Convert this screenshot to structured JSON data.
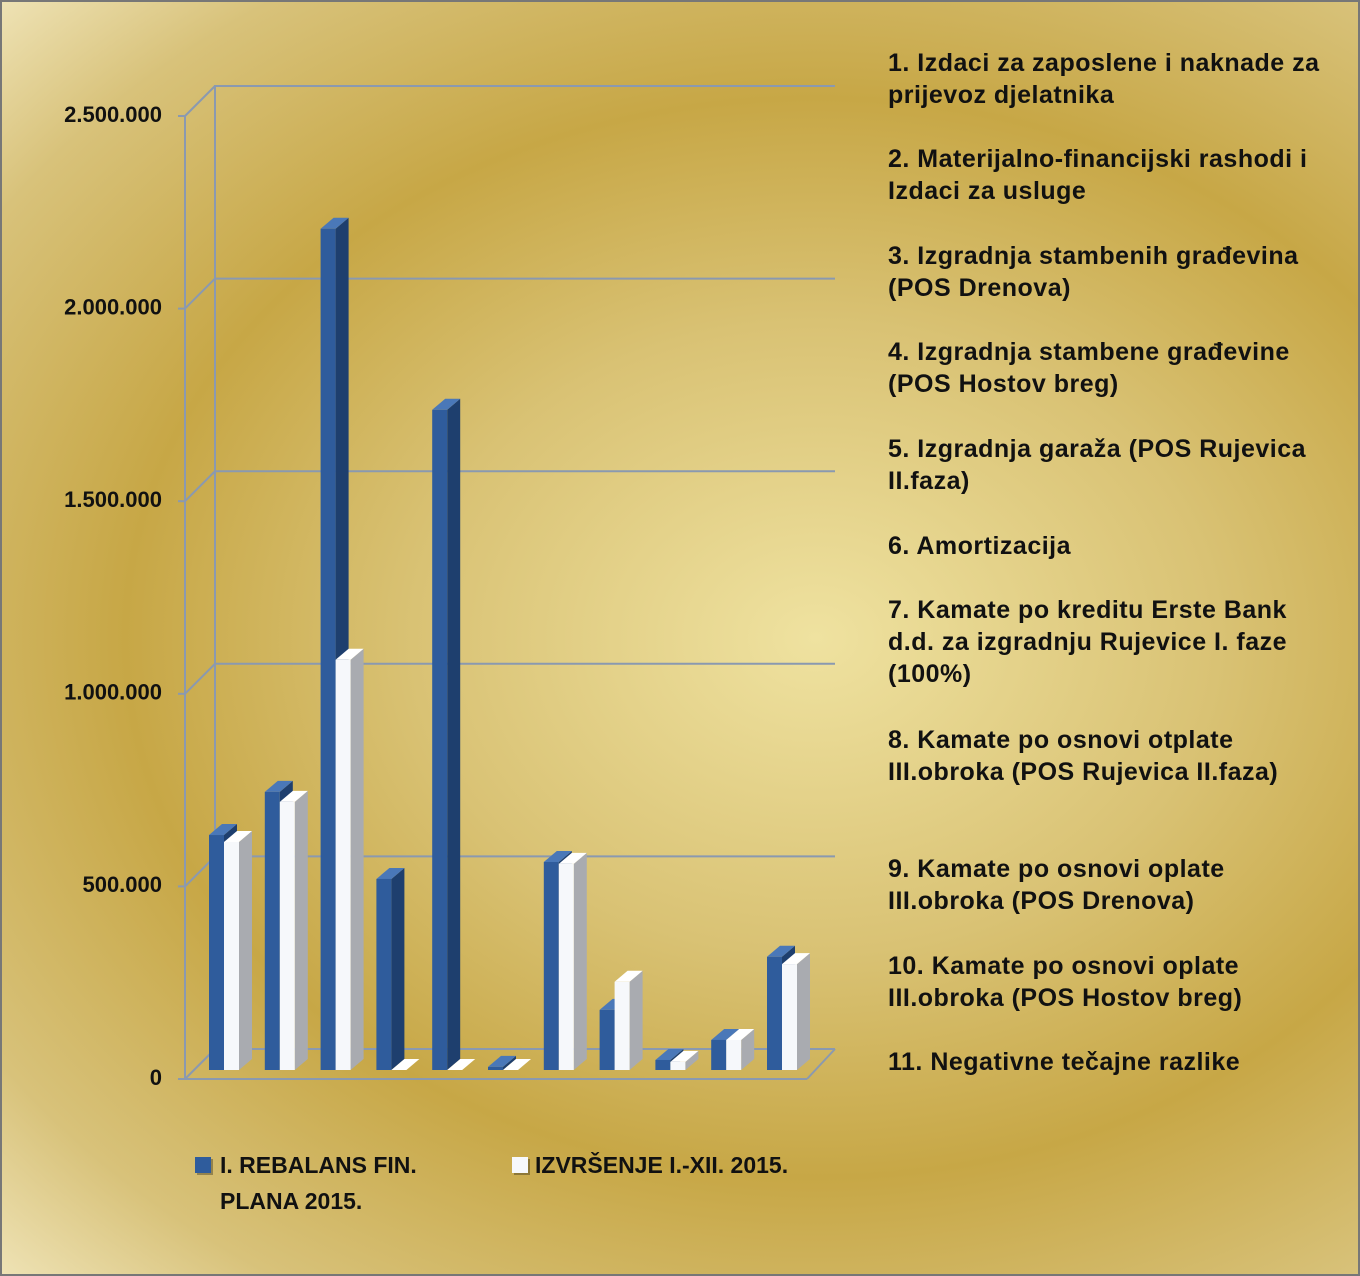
{
  "chart_data": {
    "type": "bar3d",
    "categories": [
      "1. Izdaci za zaposlene i naknade za prijevoz djelatnika",
      "2. Materijalno-financijski rashodi i Izdaci za usluge",
      "3. Izgradnja stambenih građevina (POS Drenova)",
      "4. Izgradnja stambene građevine (POS Hostov breg)",
      "5. Izgradnja garaža (POS Rujevica II.faza)",
      "6. Amortizacija",
      "7. Kamate po kreditu Erste Bank d.d. za izgradnju Rujevice I. faze (100%)",
      "8. Kamate po osnovi otplate III.obroka (POS Rujevica II.faza)",
      "9. Kamate po osnovi oplate III.obroka (POS Drenova)",
      "10. Kamate po osnovi oplate III.obroka (POS Hostov breg)",
      "11. Negativne tečajne razlike"
    ],
    "series": [
      {
        "name": "I. REBALANS FIN. PLANA 2015.",
        "color": "#2f5c9c",
        "values": [
          610000,
          722000,
          2184000,
          496000,
          1714000,
          8000,
          540000,
          156000,
          26000,
          78000,
          294000
        ]
      },
      {
        "name": "IZVRŠENJE I.-XII. 2015.",
        "color": "#f6f8fb",
        "values": [
          592000,
          696000,
          1065000,
          0,
          0,
          0,
          535000,
          229000,
          21000,
          78000,
          275000
        ]
      }
    ],
    "ylim": [
      0,
      2500000
    ],
    "yticks": [
      0,
      {
        "value": 500000,
        "label": "500.000"
      },
      {
        "value": 1000000,
        "label": "1.000.000"
      },
      {
        "value": 1500000,
        "label": "1.500.000"
      },
      {
        "value": 2000000,
        "label": "2.000.000"
      },
      {
        "value": 2500000,
        "label": "2.500.000"
      }
    ],
    "grid": true
  }
}
